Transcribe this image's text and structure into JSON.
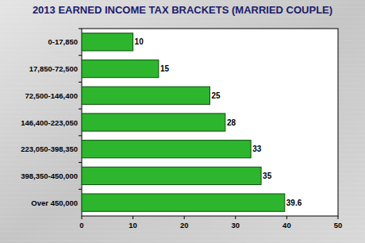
{
  "chart_data": {
    "type": "bar",
    "orientation": "horizontal",
    "title": "2013 EARNED INCOME TAX BRACKETS (MARRIED COUPLE)",
    "categories": [
      "0-17,850",
      "17,850-72,500",
      "72,500-146,400",
      "146,400-223,050",
      "223,050-398,350",
      "398,350-450,000",
      "Over 450,000"
    ],
    "values": [
      10,
      15,
      25,
      28,
      33,
      35,
      39.6
    ],
    "color": "#2eb52e",
    "xlim": [
      0,
      50
    ],
    "xticks": [
      0,
      10,
      20,
      30,
      40,
      50
    ],
    "grid": false,
    "data_labels": true
  }
}
